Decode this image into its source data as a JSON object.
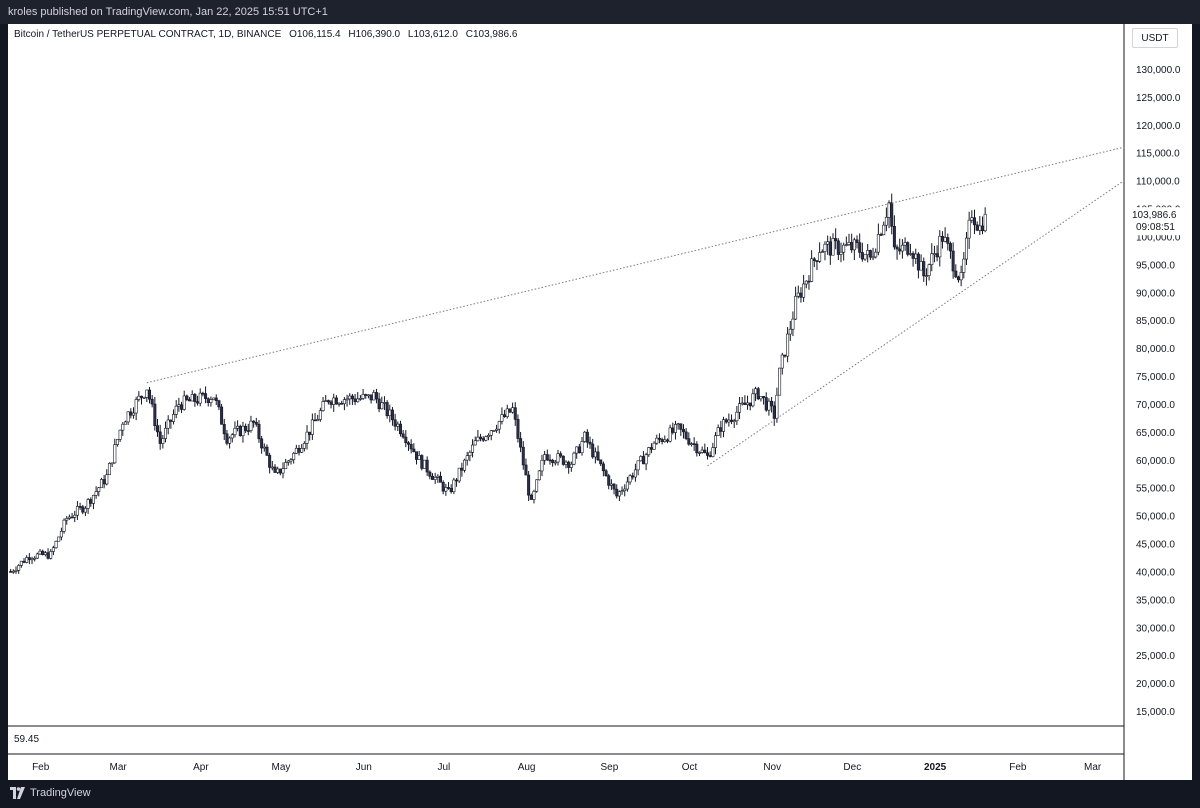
{
  "header": {
    "published_text": "kroles published on TradingView.com, Jan 22, 2025 15:51 UTC+1"
  },
  "legend": {
    "symbol": "Bitcoin / TetherUS PERPETUAL CONTRACT, 1D, BINANCE",
    "open": "O106,115.4",
    "high": "H106,390.0",
    "low": "L103,612.0",
    "close": "C103,986.6"
  },
  "currency_button": "USDT",
  "last_price_label": {
    "price": "103,986.6",
    "countdown": "09:08:51"
  },
  "indicator_value": "59.45",
  "footer": {
    "brand": "TradingView"
  },
  "colors": {
    "candle_up": "#ffffff",
    "candle_down": "#2a2e4a",
    "wick": "#131722",
    "trendline": "#787b86",
    "background": "#ffffff",
    "frame": "#131722"
  },
  "chart_data": {
    "type": "candlestick",
    "title": "Bitcoin / TetherUS PERPETUAL CONTRACT, 1D, BINANCE",
    "y_scale": "linear",
    "ylim": [
      12000,
      135000
    ],
    "y_ticks": [
      "130,000.0",
      "125,000.0",
      "120,000.0",
      "115,000.0",
      "110,000.0",
      "105,000.0",
      "100,000.0",
      "95,000.0",
      "90,000.0",
      "85,000.0",
      "80,000.0",
      "75,000.0",
      "70,000.0",
      "65,000.0",
      "60,000.0",
      "55,000.0",
      "50,000.0",
      "45,000.0",
      "40,000.0",
      "35,000.0",
      "30,000.0",
      "25,000.0",
      "20,000.0",
      "15,000.0"
    ],
    "x_ticks": [
      "Feb",
      "Mar",
      "Apr",
      "May",
      "Jun",
      "Jul",
      "Aug",
      "Sep",
      "Oct",
      "Nov",
      "Dec",
      "2025",
      "Feb",
      "Mar"
    ],
    "x_range": [
      "2024-01-22",
      "2025-03-15"
    ],
    "close_path": [
      [
        "2024-01-23",
        40000
      ],
      [
        "2024-01-30",
        42800
      ],
      [
        "2024-02-07",
        43000
      ],
      [
        "2024-02-13",
        49500
      ],
      [
        "2024-02-20",
        51800
      ],
      [
        "2024-02-28",
        57000
      ],
      [
        "2024-03-05",
        67000
      ],
      [
        "2024-03-12",
        71500
      ],
      [
        "2024-03-14",
        73000
      ],
      [
        "2024-03-19",
        63000
      ],
      [
        "2024-03-26",
        70000
      ],
      [
        "2024-04-08",
        71500
      ],
      [
        "2024-04-13",
        64000
      ],
      [
        "2024-04-23",
        66500
      ],
      [
        "2024-05-01",
        57000
      ],
      [
        "2024-05-08",
        61000
      ],
      [
        "2024-05-15",
        66000
      ],
      [
        "2024-05-21",
        71000
      ],
      [
        "2024-06-05",
        71000
      ],
      [
        "2024-06-07",
        71500
      ],
      [
        "2024-06-18",
        65000
      ],
      [
        "2024-06-24",
        60000
      ],
      [
        "2024-07-05",
        54000
      ],
      [
        "2024-07-15",
        63000
      ],
      [
        "2024-07-29",
        69000
      ],
      [
        "2024-08-05",
        52000
      ],
      [
        "2024-08-10",
        61000
      ],
      [
        "2024-08-20",
        59500
      ],
      [
        "2024-08-25",
        64000
      ],
      [
        "2024-09-06",
        53500
      ],
      [
        "2024-09-20",
        63000
      ],
      [
        "2024-09-29",
        65500
      ],
      [
        "2024-10-10",
        60500
      ],
      [
        "2024-10-15",
        66000
      ],
      [
        "2024-10-29",
        72000
      ],
      [
        "2024-11-04",
        68000
      ],
      [
        "2024-11-06",
        75500
      ],
      [
        "2024-11-12",
        88000
      ],
      [
        "2024-11-21",
        98000
      ],
      [
        "2024-12-05",
        98000
      ],
      [
        "2024-12-10",
        96000
      ],
      [
        "2024-12-17",
        106000
      ],
      [
        "2024-12-19",
        97000
      ],
      [
        "2024-12-25",
        98500
      ],
      [
        "2024-12-30",
        93000
      ],
      [
        "2025-01-06",
        100000
      ],
      [
        "2025-01-13",
        92000
      ],
      [
        "2025-01-17",
        104500
      ],
      [
        "2025-01-20",
        101500
      ],
      [
        "2025-01-22",
        103987
      ]
    ],
    "trendlines": [
      {
        "from": [
          "2024-03-14",
          73800
        ],
        "to": [
          "2025-03-15",
          116000
        ]
      },
      {
        "from": [
          "2024-10-10",
          58900
        ],
        "to": [
          "2025-03-15",
          110000
        ]
      }
    ],
    "last_price": 103986.6
  }
}
